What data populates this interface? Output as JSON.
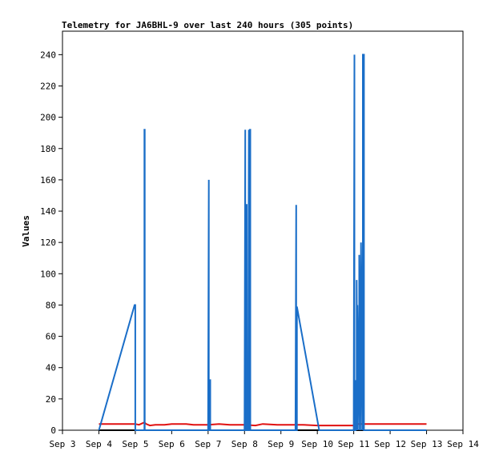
{
  "chart_data": {
    "type": "line",
    "title": "Telemetry for JA6BHL-9 over last 240 hours (305 points)",
    "xlabel": "",
    "ylabel": "Values",
    "x_ticks": [
      "Sep 3",
      "Sep 4",
      "Sep 5",
      "Sep 6",
      "Sep 7",
      "Sep 8",
      "Sep 9",
      "Sep 10",
      "Sep 11",
      "Sep 12",
      "Sep 13",
      "Sep 14"
    ],
    "xlim": [
      3,
      14
    ],
    "y_ticks": [
      "0",
      "20",
      "40",
      "60",
      "80",
      "100",
      "120",
      "140",
      "160",
      "180",
      "200",
      "220",
      "240"
    ],
    "ylim": [
      0,
      255
    ],
    "grid": false,
    "colors": {
      "series_blue": "#1a6ec8",
      "series_red": "#e01010",
      "series_black": "#000000",
      "axis": "#000000"
    },
    "series": [
      {
        "color_key": "series_blue",
        "x": [
          4.0,
          4.98,
          5.0,
          5.0,
          5.25,
          5.25,
          5.26,
          5.26,
          7.0,
          7.02,
          7.02,
          7.05,
          7.05,
          7.06,
          7.06,
          8.0,
          8.02,
          8.02,
          8.05,
          8.05,
          8.06,
          8.06,
          8.1,
          8.12,
          8.12,
          8.15,
          8.15,
          8.16,
          8.16,
          9.4,
          9.42,
          9.42,
          9.44,
          9.44,
          10.05,
          10.05,
          11.0,
          11.02,
          11.02,
          11.05,
          11.05,
          11.08,
          11.08,
          11.1,
          11.1,
          11.15,
          11.15,
          11.2,
          11.2,
          11.25,
          11.25,
          11.28,
          11.28,
          11.3,
          11.3,
          13.0
        ],
        "y": [
          0,
          80,
          80,
          0,
          0,
          192,
          192,
          0,
          0,
          160,
          0,
          0,
          32,
          32,
          0,
          0,
          192,
          0,
          0,
          144,
          144,
          0,
          0,
          192,
          0,
          0,
          192,
          192,
          0,
          0,
          144,
          0,
          0,
          79,
          0,
          0,
          0,
          240,
          0,
          0,
          32,
          0,
          96,
          0,
          80,
          0,
          112,
          0,
          120,
          0,
          240,
          240,
          0,
          0,
          0,
          0
        ]
      },
      {
        "color_key": "series_red",
        "x": [
          4.0,
          4.2,
          4.6,
          5.0,
          5.1,
          5.25,
          5.3,
          5.4,
          5.55,
          5.8,
          6.0,
          6.4,
          6.6,
          7.0,
          7.3,
          7.6,
          8.0,
          8.3,
          8.5,
          8.9,
          9.3,
          9.6,
          10.0,
          10.5,
          11.0,
          11.1,
          11.4,
          12.0,
          12.5,
          13.0
        ],
        "y": [
          4,
          4,
          4,
          4,
          3.5,
          5,
          4,
          3,
          3.5,
          3.5,
          4,
          4,
          3.5,
          3.5,
          4,
          3.5,
          3.5,
          3,
          4,
          3.5,
          3.5,
          3.5,
          3,
          3,
          3,
          4,
          4,
          4,
          4,
          4
        ]
      },
      {
        "color_key": "series_black",
        "x": [
          4.0,
          13.0
        ],
        "y": [
          0,
          0
        ]
      }
    ]
  }
}
